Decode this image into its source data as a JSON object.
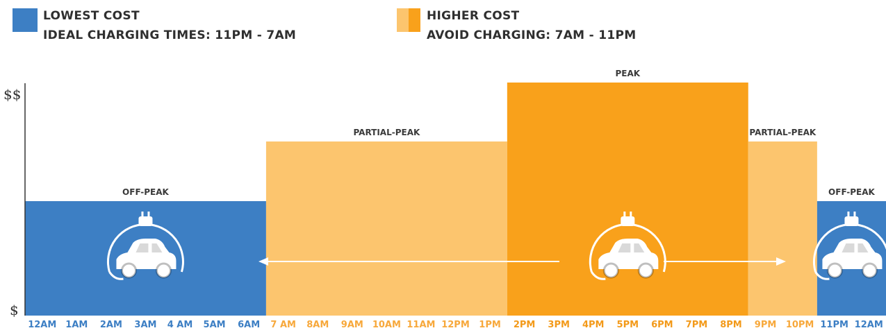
{
  "legend": {
    "lowest": {
      "color": "#3d7fc4",
      "line1": "LOWEST COST",
      "line2": "IDEAL CHARGING TIMES: 11PM - 7AM"
    },
    "higher": {
      "color_light": "#fcc56e",
      "color_dark": "#f9a11b",
      "line1": "HIGHER COST",
      "line2": "AVOID CHARGING: 7AM - 11PM"
    }
  },
  "chart_data": {
    "type": "bar",
    "y_ticks": [
      "$$",
      "$"
    ],
    "x_ticks": [
      {
        "label": "12AM",
        "tier": "off"
      },
      {
        "label": "1AM",
        "tier": "off"
      },
      {
        "label": "2AM",
        "tier": "off"
      },
      {
        "label": "3AM",
        "tier": "off"
      },
      {
        "label": "4 AM",
        "tier": "off"
      },
      {
        "label": "5AM",
        "tier": "off"
      },
      {
        "label": "6AM",
        "tier": "off"
      },
      {
        "label": "7 AM",
        "tier": "partial"
      },
      {
        "label": "8AM",
        "tier": "partial"
      },
      {
        "label": "9AM",
        "tier": "partial"
      },
      {
        "label": "10AM",
        "tier": "partial"
      },
      {
        "label": "11AM",
        "tier": "partial"
      },
      {
        "label": "12PM",
        "tier": "partial"
      },
      {
        "label": "1PM",
        "tier": "partial"
      },
      {
        "label": "2PM",
        "tier": "peak"
      },
      {
        "label": "3PM",
        "tier": "peak"
      },
      {
        "label": "4PM",
        "tier": "peak"
      },
      {
        "label": "5PM",
        "tier": "peak"
      },
      {
        "label": "6PM",
        "tier": "peak"
      },
      {
        "label": "7PM",
        "tier": "peak"
      },
      {
        "label": "8PM",
        "tier": "peak"
      },
      {
        "label": "9PM",
        "tier": "partial"
      },
      {
        "label": "10PM",
        "tier": "partial"
      },
      {
        "label": "11PM",
        "tier": "off"
      },
      {
        "label": "12AM",
        "tier": "off"
      }
    ],
    "periods": [
      {
        "label": "OFF-PEAK",
        "start": 0,
        "end": 7,
        "level": 1,
        "tier": "off",
        "icon": "ev-charging-icon"
      },
      {
        "label": "PARTIAL-PEAK",
        "start": 7,
        "end": 14,
        "level": 2,
        "tier": "partial"
      },
      {
        "label": "PEAK",
        "start": 14,
        "end": 21,
        "level": 3,
        "tier": "peak",
        "icon": "ev-charging-icon"
      },
      {
        "label": "PARTIAL-PEAK",
        "start": 21,
        "end": 23,
        "level": 2,
        "tier": "partial"
      },
      {
        "label": "OFF-PEAK",
        "start": 23,
        "end": 25,
        "level": 1,
        "tier": "off",
        "icon": "ev-charging-icon"
      }
    ],
    "colors": {
      "off": "#3d7fc4",
      "partial": "#fcc56e",
      "peak": "#f9a11b"
    },
    "tick_colors": {
      "off": "#3d7fc4",
      "partial": "#f7a83b",
      "peak": "#f39a1a"
    }
  }
}
